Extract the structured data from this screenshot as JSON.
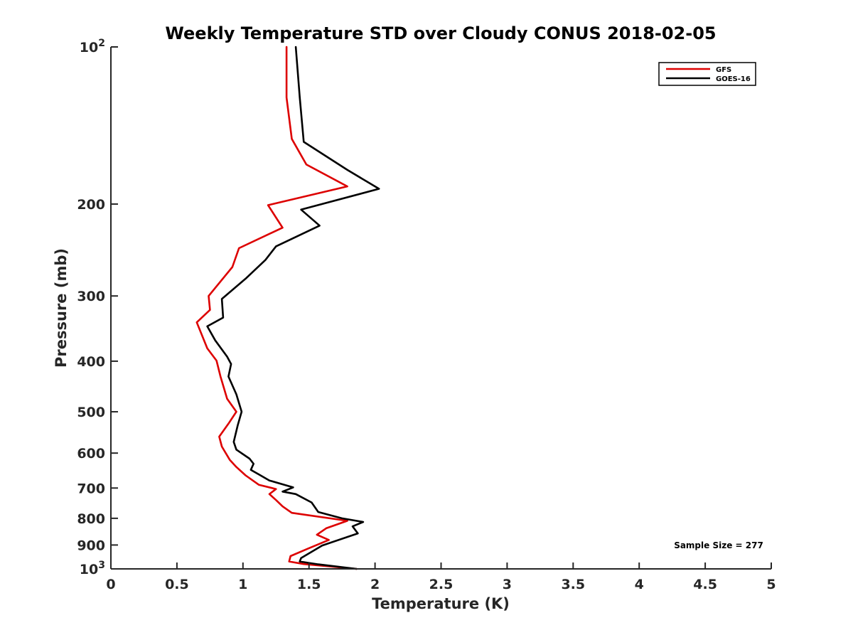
{
  "chart_data": {
    "type": "line",
    "title": "Weekly Temperature STD over Cloudy CONUS 2018-02-05",
    "xlabel": "Temperature (K)",
    "ylabel": "Pressure (mb)",
    "xlim": [
      0,
      5
    ],
    "ylim": [
      100,
      1000
    ],
    "y_scale": "log",
    "y_reversed": true,
    "grid": false,
    "legend_position": "top-right",
    "x_ticks": [
      {
        "value": 0,
        "label": "0"
      },
      {
        "value": 0.5,
        "label": "0.5"
      },
      {
        "value": 1,
        "label": "1"
      },
      {
        "value": 1.5,
        "label": "1.5"
      },
      {
        "value": 2,
        "label": "2"
      },
      {
        "value": 2.5,
        "label": "2.5"
      },
      {
        "value": 3,
        "label": "3"
      },
      {
        "value": 3.5,
        "label": "3.5"
      },
      {
        "value": 4,
        "label": "4"
      },
      {
        "value": 4.5,
        "label": "4.5"
      },
      {
        "value": 5,
        "label": "5"
      }
    ],
    "y_ticks": [
      {
        "value": 100,
        "base": "10",
        "exp": "2"
      },
      {
        "value": 200,
        "label": "200"
      },
      {
        "value": 300,
        "label": "300"
      },
      {
        "value": 400,
        "label": "400"
      },
      {
        "value": 500,
        "label": "500"
      },
      {
        "value": 600,
        "label": "600"
      },
      {
        "value": 700,
        "label": "700"
      },
      {
        "value": 800,
        "label": "800"
      },
      {
        "value": 900,
        "label": "900"
      },
      {
        "value": 1000,
        "base": "10",
        "exp": "3"
      }
    ],
    "series": [
      {
        "name": "GFS",
        "color": "#dd0000",
        "points": [
          [
            1.33,
            100
          ],
          [
            1.33,
            125
          ],
          [
            1.37,
            150
          ],
          [
            1.48,
            168
          ],
          [
            1.79,
            185
          ],
          [
            1.19,
            201
          ],
          [
            1.3,
            222
          ],
          [
            0.97,
            243
          ],
          [
            0.92,
            264
          ],
          [
            0.74,
            300
          ],
          [
            0.75,
            319
          ],
          [
            0.65,
            337
          ],
          [
            0.73,
            378
          ],
          [
            0.8,
            399
          ],
          [
            0.83,
            428
          ],
          [
            0.88,
            472
          ],
          [
            0.95,
            500
          ],
          [
            0.89,
            527
          ],
          [
            0.82,
            558
          ],
          [
            0.84,
            583
          ],
          [
            0.9,
            618
          ],
          [
            0.95,
            638
          ],
          [
            1.02,
            662
          ],
          [
            1.12,
            690
          ],
          [
            1.25,
            703
          ],
          [
            1.2,
            719
          ],
          [
            1.25,
            738
          ],
          [
            1.3,
            759
          ],
          [
            1.37,
            781
          ],
          [
            1.79,
            809
          ],
          [
            1.63,
            836
          ],
          [
            1.56,
            860
          ],
          [
            1.65,
            880
          ],
          [
            1.49,
            915
          ],
          [
            1.36,
            945
          ],
          [
            1.35,
            968
          ],
          [
            1.46,
            979
          ],
          [
            1.86,
            1000
          ]
        ]
      },
      {
        "name": "GOES-16",
        "color": "#000000",
        "points": [
          [
            1.4,
            100
          ],
          [
            1.43,
            125
          ],
          [
            1.46,
            152
          ],
          [
            1.79,
            172
          ],
          [
            2.03,
            187
          ],
          [
            1.44,
            205
          ],
          [
            1.58,
            220
          ],
          [
            1.25,
            241
          ],
          [
            1.17,
            256
          ],
          [
            1.02,
            278
          ],
          [
            0.84,
            304
          ],
          [
            0.85,
            330
          ],
          [
            0.73,
            343
          ],
          [
            0.79,
            365
          ],
          [
            0.88,
            392
          ],
          [
            0.91,
            405
          ],
          [
            0.89,
            428
          ],
          [
            0.95,
            463
          ],
          [
            0.99,
            500
          ],
          [
            0.96,
            531
          ],
          [
            0.93,
            571
          ],
          [
            0.95,
            591
          ],
          [
            1.05,
            615
          ],
          [
            1.08,
            629
          ],
          [
            1.06,
            646
          ],
          [
            1.12,
            659
          ],
          [
            1.2,
            677
          ],
          [
            1.38,
            698
          ],
          [
            1.3,
            711
          ],
          [
            1.4,
            719
          ],
          [
            1.52,
            746
          ],
          [
            1.57,
            778
          ],
          [
            1.75,
            800
          ],
          [
            1.91,
            813
          ],
          [
            1.83,
            829
          ],
          [
            1.87,
            855
          ],
          [
            1.6,
            902
          ],
          [
            1.44,
            953
          ],
          [
            1.43,
            968
          ],
          [
            1.57,
            980
          ],
          [
            1.86,
            1000
          ]
        ]
      }
    ],
    "annotation": "Sample Size = 277"
  }
}
